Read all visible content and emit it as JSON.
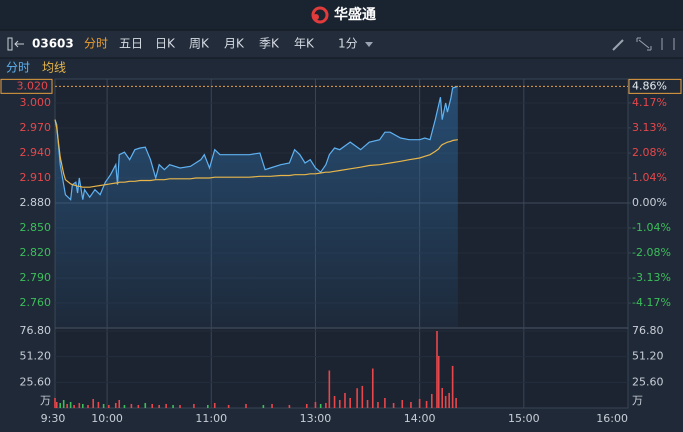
{
  "header": {
    "title": "华盛通"
  },
  "toolbar": {
    "symbol": "03603",
    "tabs": [
      "分时",
      "五日",
      "日K",
      "周K",
      "月K",
      "季K",
      "年K"
    ],
    "interval": "1分"
  },
  "chart_data": [
    {
      "type": "line",
      "x": [
        0,
        1,
        3,
        5,
        6,
        9,
        10,
        12,
        13,
        14,
        16,
        17,
        20,
        23,
        26,
        29,
        32,
        35,
        36,
        37,
        40,
        43,
        46,
        49,
        52,
        55,
        58,
        60,
        63,
        66,
        72,
        78,
        81,
        84,
        86,
        89,
        92,
        95,
        101,
        107,
        112,
        118,
        121,
        124,
        130,
        135,
        138,
        141,
        144,
        147,
        150,
        153,
        156,
        158,
        161,
        164,
        170,
        176,
        181,
        187,
        190,
        193,
        199,
        204,
        210,
        213,
        216,
        219,
        221,
        222,
        223,
        225,
        226,
        228,
        229,
        232
      ],
      "xlim": [
        0,
        330
      ],
      "xticks": [
        {
          "value": 0,
          "label": "9:30"
        },
        {
          "value": 30,
          "label": "10:00"
        },
        {
          "value": 90,
          "label": "11:00"
        },
        {
          "value": 150,
          "label": "13:00"
        },
        {
          "value": 210,
          "label": "14:00"
        },
        {
          "value": 270,
          "label": "15:00"
        },
        {
          "value": 330,
          "label": "16:00"
        }
      ],
      "ylim": [
        2.7312,
        3.0288
      ],
      "yticks": [
        {
          "value": 3,
          "label": "3.000"
        },
        {
          "value": 2.97,
          "label": "2.970"
        },
        {
          "value": 2.94,
          "label": "2.940"
        },
        {
          "value": 2.91,
          "label": "2.910"
        },
        {
          "value": 2.88,
          "label": "2.880"
        },
        {
          "value": 2.85,
          "label": "2.850"
        },
        {
          "value": 2.82,
          "label": "2.820"
        },
        {
          "value": 2.79,
          "label": "2.790"
        },
        {
          "value": 2.76,
          "label": "2.760"
        }
      ],
      "y2lim": [
        -5.1667,
        5.1667
      ],
      "y2ticks": [
        {
          "value": 4.17,
          "label": "4.17%"
        },
        {
          "value": 3.13,
          "label": "3.13%"
        },
        {
          "value": 2.08,
          "label": "2.08%"
        },
        {
          "value": 1.04,
          "label": "1.04%"
        },
        {
          "value": 0,
          "label": "0.00%"
        },
        {
          "value": -1.04,
          "label": "-1.04%"
        },
        {
          "value": -2.08,
          "label": "-2.08%"
        },
        {
          "value": -3.13,
          "label": "-3.13%"
        },
        {
          "value": -4.17,
          "label": "-4.17%"
        }
      ],
      "up_color": "#e8474b",
      "down_color": "#3cbf5a",
      "last_price": {
        "value": 3.02,
        "label": "3.020"
      },
      "last_change": {
        "value": 4.86,
        "label": "4.86%"
      },
      "series": [
        {
          "name": "分时",
          "color": "#5fb2f2",
          "values": [
            2.98,
            2.974,
            2.926,
            2.902,
            2.89,
            2.884,
            2.902,
            2.905,
            2.892,
            2.91,
            2.884,
            2.896,
            2.887,
            2.896,
            2.89,
            2.905,
            2.914,
            2.926,
            2.902,
            2.938,
            2.941,
            2.932,
            2.944,
            2.946,
            2.947,
            2.932,
            2.91,
            2.926,
            2.92,
            2.926,
            2.922,
            2.924,
            2.928,
            2.932,
            2.938,
            2.922,
            2.944,
            2.938,
            2.938,
            2.938,
            2.938,
            2.94,
            2.92,
            2.922,
            2.926,
            2.928,
            2.944,
            2.938,
            2.928,
            2.932,
            2.922,
            2.917,
            2.926,
            2.938,
            2.946,
            2.944,
            2.953,
            2.944,
            2.953,
            2.956,
            2.965,
            2.965,
            2.958,
            2.956,
            2.956,
            2.958,
            2.956,
            2.98,
            2.998,
            3.007,
            2.98,
            3.0,
            2.989,
            3.006,
            3.018,
            3.02
          ]
        },
        {
          "name": "均线",
          "color": "#e8b64a",
          "values": [
            2.98,
            2.97,
            2.935,
            2.915,
            2.908,
            2.903,
            2.902,
            2.901,
            2.9,
            2.9,
            2.899,
            2.899,
            2.899,
            2.9,
            2.901,
            2.902,
            2.903,
            2.904,
            2.904,
            2.905,
            2.905,
            2.906,
            2.906,
            2.907,
            2.907,
            2.907,
            2.908,
            2.908,
            2.908,
            2.909,
            2.909,
            2.909,
            2.91,
            2.91,
            2.91,
            2.91,
            2.911,
            2.911,
            2.911,
            2.911,
            2.911,
            2.912,
            2.912,
            2.912,
            2.913,
            2.913,
            2.914,
            2.914,
            2.914,
            2.915,
            2.915,
            2.916,
            2.917,
            2.917,
            2.918,
            2.919,
            2.921,
            2.923,
            2.925,
            2.926,
            2.927,
            2.928,
            2.93,
            2.932,
            2.934,
            2.936,
            2.938,
            2.942,
            2.945,
            2.948,
            2.95,
            2.952,
            2.953,
            2.954,
            2.955,
            2.956
          ]
        }
      ]
    },
    {
      "type": "bar",
      "unit": "万",
      "x": [
        0,
        1,
        3,
        5,
        7,
        9,
        11,
        14,
        16,
        19,
        22,
        25,
        28,
        31,
        35,
        37,
        40,
        44,
        48,
        52,
        56,
        60,
        64,
        68,
        72,
        80,
        88,
        92,
        100,
        110,
        120,
        125,
        135,
        145,
        150,
        153,
        156,
        158,
        161,
        164,
        167,
        170,
        174,
        177,
        180,
        183,
        186,
        190,
        195,
        200,
        205,
        210,
        214,
        217,
        220,
        221,
        223,
        225,
        227,
        229,
        231
      ],
      "values": [
        10,
        6,
        5,
        8,
        4,
        6,
        3,
        5,
        4,
        3,
        9,
        6,
        4,
        3,
        5,
        8,
        3,
        4,
        3,
        5,
        4,
        3,
        4,
        3,
        3,
        4,
        3,
        5,
        3,
        4,
        3,
        4,
        3,
        4,
        6,
        4,
        5,
        37.4,
        12,
        8,
        15,
        10,
        19.7,
        22,
        8,
        39.4,
        6,
        10,
        5,
        8,
        6,
        9,
        7,
        14,
        76.8,
        52,
        20,
        12,
        15,
        42,
        10
      ],
      "colors": [
        "#e8474b",
        "#e8474b",
        "#3cbf5a",
        "#3cbf5a",
        "#e8474b",
        "#3cbf5a",
        "#e8474b",
        "#e8474b",
        "#3cbf5a",
        "#e8474b",
        "#e8474b",
        "#e8474b",
        "#3cbf5a",
        "#e8474b",
        "#e8474b",
        "#e8474b",
        "#3cbf5a",
        "#e8474b",
        "#e8474b",
        "#3cbf5a",
        "#e8474b",
        "#e8474b",
        "#e8474b",
        "#3cbf5a",
        "#e8474b",
        "#e8474b",
        "#3cbf5a",
        "#e8474b",
        "#e8474b",
        "#e8474b",
        "#3cbf5a",
        "#e8474b",
        "#e8474b",
        "#e8474b",
        "#e8474b",
        "#3cbf5a",
        "#e8474b",
        "#e8474b",
        "#e8474b",
        "#e8474b",
        "#e8474b",
        "#e8474b",
        "#e8474b",
        "#e8474b",
        "#e8474b",
        "#e8474b",
        "#e8474b",
        "#e8474b",
        "#e8474b",
        "#e8474b",
        "#e8474b",
        "#e8474b",
        "#e8474b",
        "#e8474b",
        "#e8474b",
        "#e8474b",
        "#e8474b",
        "#e8474b",
        "#e8474b",
        "#e8474b",
        "#e8474b"
      ],
      "ylim": [
        0,
        78.8
      ],
      "yticks": [
        {
          "value": 25.6,
          "label": "25.60"
        },
        {
          "value": 51.2,
          "label": "51.20"
        },
        {
          "value": 76.8,
          "label": "76.80"
        }
      ]
    }
  ]
}
